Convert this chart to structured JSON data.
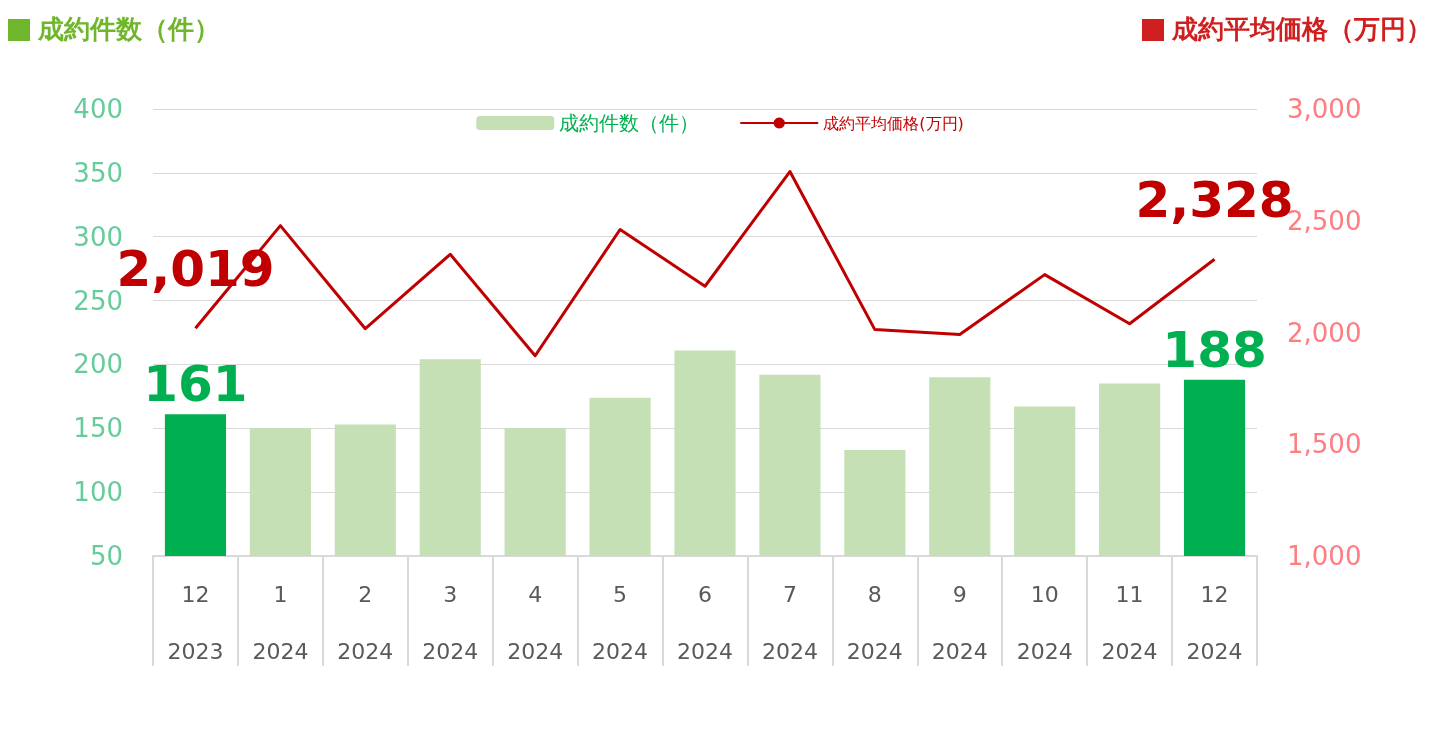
{
  "chart_data": {
    "type": "bar",
    "ylabel": "成約件数（件）",
    "y2label": "成約平均価格（万円）",
    "categories": [
      "12\n2023",
      "1\n2024",
      "2\n2024",
      "3\n2024",
      "4\n2024",
      "5\n2024",
      "6\n2024",
      "7\n2024",
      "8\n2024",
      "9\n2024",
      "10\n2024",
      "11\n2024",
      "12\n2024"
    ],
    "series": [
      {
        "name": "成約件数（件）",
        "color": "#c5e0b4",
        "colors": [
          "#00b050",
          "#c5e0b4",
          "#c5e0b4",
          "#c5e0b4",
          "#c5e0b4",
          "#c5e0b4",
          "#c5e0b4",
          "#c5e0b4",
          "#c5e0b4",
          "#c5e0b4",
          "#c5e0b4",
          "#c5e0b4",
          "#00b050"
        ],
        "values": [
          161,
          150,
          153,
          204,
          150,
          174,
          211,
          192,
          133,
          190,
          167,
          185,
          188
        ],
        "value_labels": [
          "161",
          null,
          null,
          null,
          null,
          null,
          null,
          null,
          null,
          null,
          null,
          null,
          "188"
        ]
      },
      {
        "name": "成約平均価格(万円)",
        "type": "line",
        "axis": "y2",
        "color": "#c00000",
        "values": [
          2019,
          2478,
          2017,
          2350,
          1896,
          2461,
          2207,
          2720,
          2013,
          1991,
          2259,
          2039,
          2328
        ],
        "value_labels": [
          "2,019",
          null,
          null,
          null,
          null,
          null,
          null,
          null,
          null,
          null,
          null,
          null,
          "2,328"
        ]
      }
    ],
    "ylim": [
      50,
      400
    ],
    "yticks": [
      50,
      100,
      150,
      200,
      250,
      300,
      350,
      400
    ],
    "y2lim": [
      1000,
      3000
    ],
    "y2ticks": [
      {
        "value": 1000,
        "label": "1,000"
      },
      {
        "value": 1500,
        "label": "1,500"
      },
      {
        "value": 2000,
        "label": "2,000"
      },
      {
        "value": 2500,
        "label": "2,500"
      },
      {
        "value": 3000,
        "label": "3,000"
      }
    ],
    "grid": "y",
    "legend": "top",
    "marker": "none",
    "line_style": "solid"
  }
}
